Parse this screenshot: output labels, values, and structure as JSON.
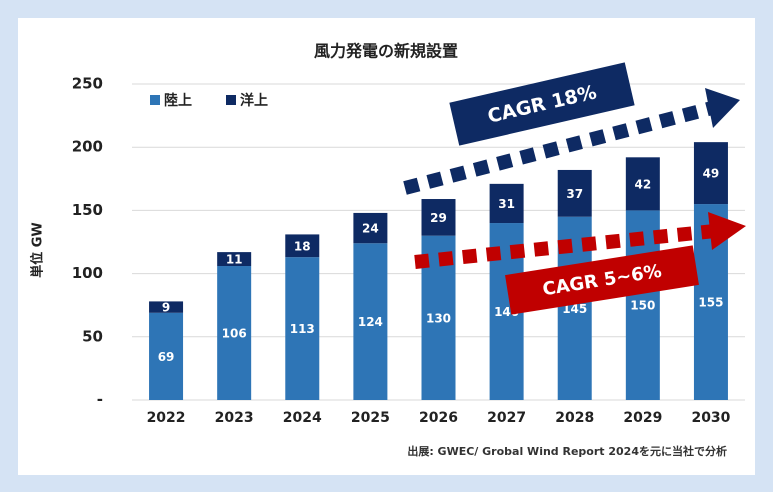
{
  "chart_data": {
    "type": "bar",
    "stacked": true,
    "title": "風力発電の新規設置",
    "y_label": "単位 GW",
    "categories": [
      "2022",
      "2023",
      "2024",
      "2025",
      "2026",
      "2027",
      "2028",
      "2029",
      "2030"
    ],
    "series": [
      {
        "name": "陸上",
        "color": "#2e75b6",
        "values": [
          69,
          106,
          113,
          124,
          130,
          140,
          145,
          150,
          155
        ]
      },
      {
        "name": "洋上",
        "color": "#0e2a63",
        "values": [
          9,
          11,
          18,
          24,
          29,
          31,
          37,
          42,
          49
        ]
      }
    ],
    "ylim": [
      0,
      250
    ],
    "yticks": [
      {
        "value": 0,
        "label": "-"
      },
      50,
      100,
      150,
      200,
      250
    ],
    "grid": true,
    "annotations": [
      "CAGR 18%",
      "CAGR 5~6%"
    ],
    "source": "出展: GWEC/ Grobal Wind Report 2024を元に当社で分析"
  }
}
